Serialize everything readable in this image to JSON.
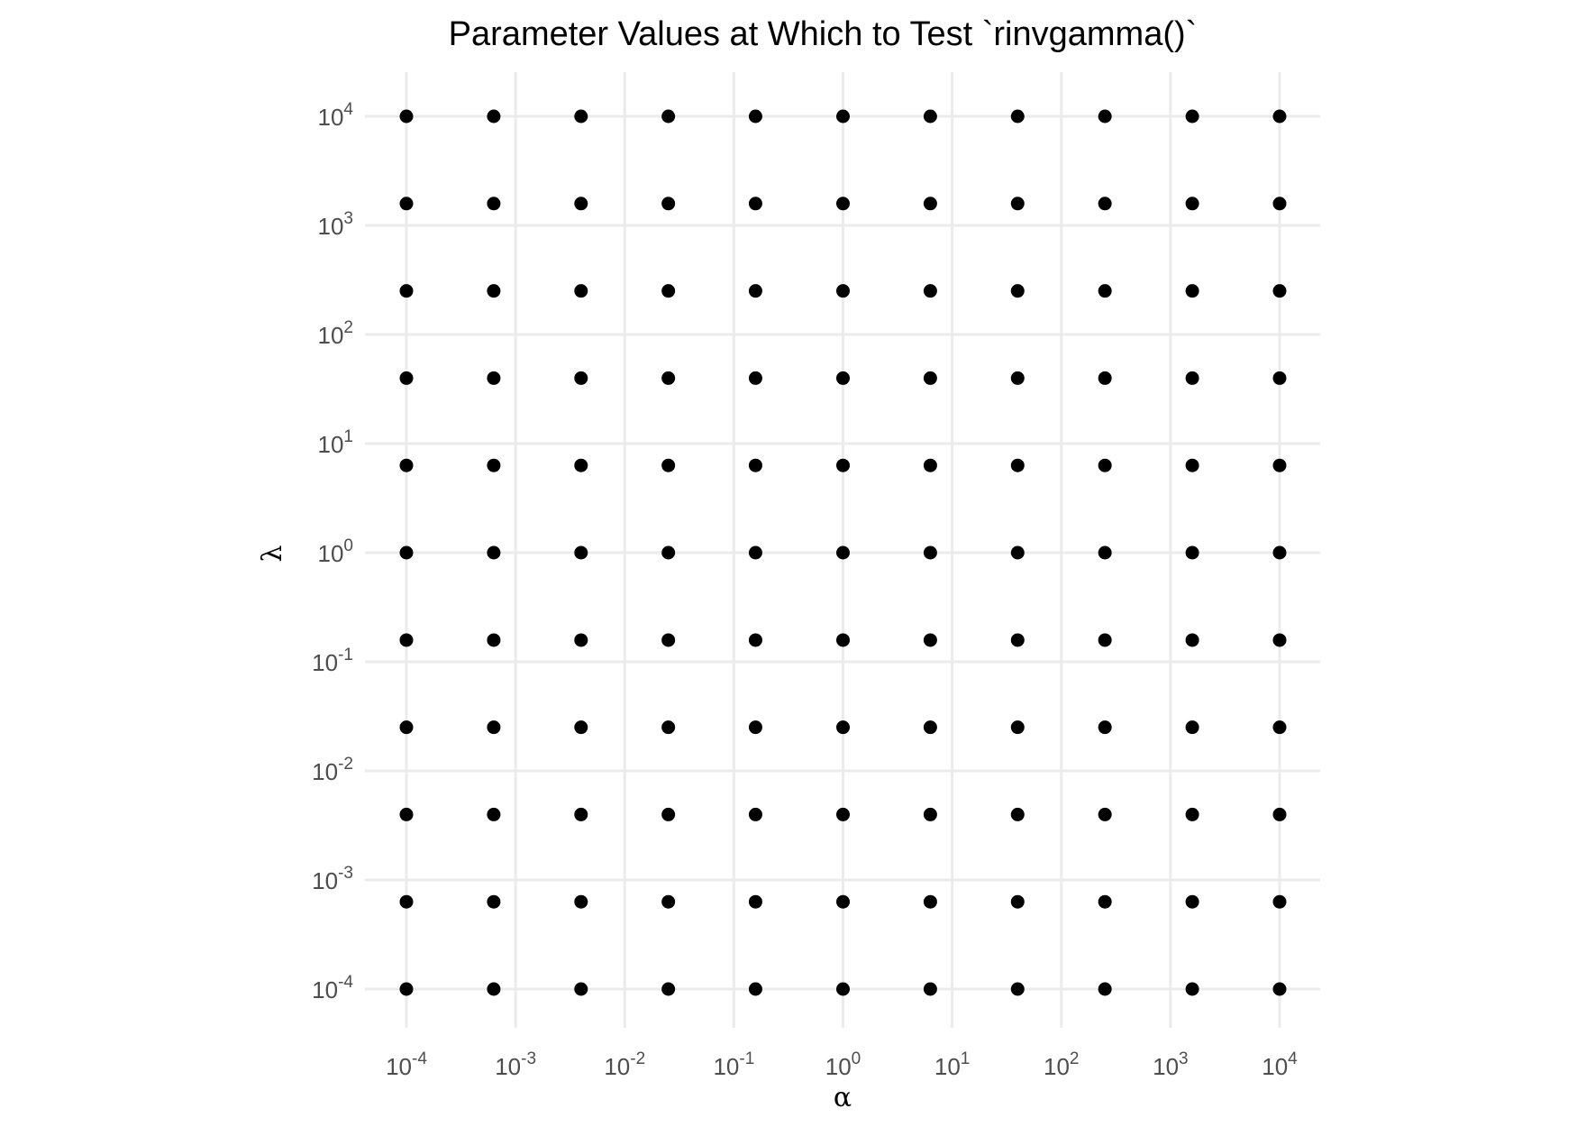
{
  "chart_data": {
    "type": "scatter",
    "title": "Parameter Values at Which to Test `rinvgamma()`",
    "xlabel": "α",
    "ylabel": "λ",
    "x_scale": "log10",
    "y_scale": "log10",
    "xlim": [
      0.0001,
      10000
    ],
    "ylim": [
      0.0001,
      10000
    ],
    "grid": true,
    "x_ticks": [
      0.0001,
      0.001,
      0.01,
      0.1,
      1,
      10,
      100,
      1000,
      10000
    ],
    "x_tick_labels": [
      {
        "base": "10",
        "exp": "-4"
      },
      {
        "base": "10",
        "exp": "-3"
      },
      {
        "base": "10",
        "exp": "-2"
      },
      {
        "base": "10",
        "exp": "-1"
      },
      {
        "base": "10",
        "exp": "0"
      },
      {
        "base": "10",
        "exp": "1"
      },
      {
        "base": "10",
        "exp": "2"
      },
      {
        "base": "10",
        "exp": "3"
      },
      {
        "base": "10",
        "exp": "4"
      }
    ],
    "y_ticks": [
      0.0001,
      0.001,
      0.01,
      0.1,
      1,
      10,
      100,
      1000,
      10000
    ],
    "y_tick_labels": [
      {
        "base": "10",
        "exp": "-4"
      },
      {
        "base": "10",
        "exp": "-3"
      },
      {
        "base": "10",
        "exp": "-2"
      },
      {
        "base": "10",
        "exp": "-1"
      },
      {
        "base": "10",
        "exp": "0"
      },
      {
        "base": "10",
        "exp": "1"
      },
      {
        "base": "10",
        "exp": "2"
      },
      {
        "base": "10",
        "exp": "3"
      },
      {
        "base": "10",
        "exp": "4"
      }
    ],
    "alpha_values": [
      0.0001,
      0.000631,
      0.00398,
      0.0251,
      0.158,
      1,
      6.31,
      39.8,
      251,
      1585,
      10000
    ],
    "lambda_values": [
      0.0001,
      0.000631,
      0.00398,
      0.0251,
      0.158,
      1,
      6.31,
      39.8,
      251,
      1585,
      10000
    ],
    "point_color": "#000000",
    "grid_color": "#ebebeb"
  }
}
